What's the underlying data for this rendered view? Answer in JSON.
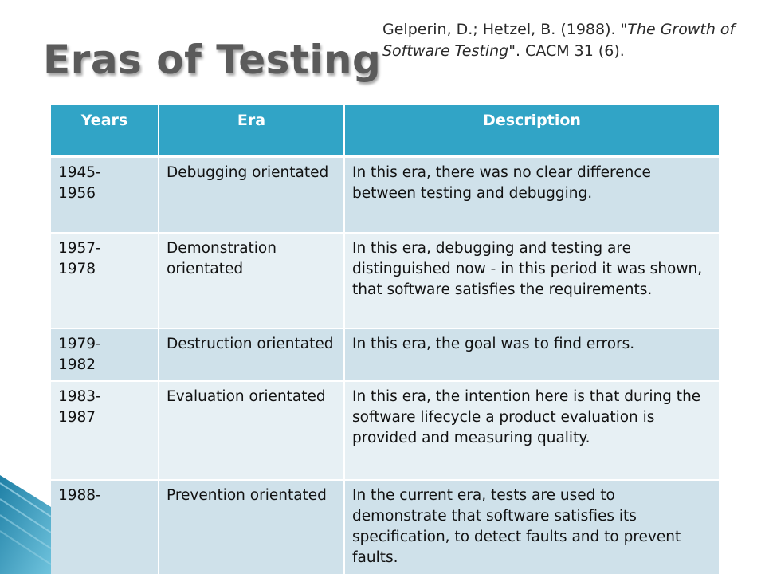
{
  "title": "Eras of Testing",
  "citation": {
    "prefix": "Gelperin, D.; Hetzel, B. (1988). \"",
    "italic": "The Growth of Software Testing",
    "suffix": "\". CACM 31 (6)."
  },
  "table": {
    "headers": [
      "Years",
      "Era",
      "Description"
    ],
    "rows": [
      {
        "years": "1945-\n1956",
        "era": "Debugging orientated",
        "description": "In this era, there was no clear difference between testing and debugging."
      },
      {
        "years": "1957-\n1978",
        "era": "Demonstration orientated",
        "description": "In this era, debugging and testing are distinguished now - in this period it was shown, that software satisfies the requirements."
      },
      {
        "years": "1979-\n1982",
        "era": "Destruction orientated",
        "description": "In this era, the goal was to find errors."
      },
      {
        "years": "1983-\n1987",
        "era": "Evaluation orientated",
        "description": "In this era, the intention here is that during the software lifecycle a product evaluation is provided and measuring quality."
      },
      {
        "years": "1988-",
        "era": "Prevention orientated",
        "description": "In the current era, tests are used to demonstrate that software satisfies its specification, to detect faults and to prevent faults."
      }
    ]
  },
  "colors": {
    "header_bg": "#31a4c6",
    "row_dark": "#cfe1ea",
    "row_light": "#e7f0f4",
    "title": "#5b5b5b"
  }
}
